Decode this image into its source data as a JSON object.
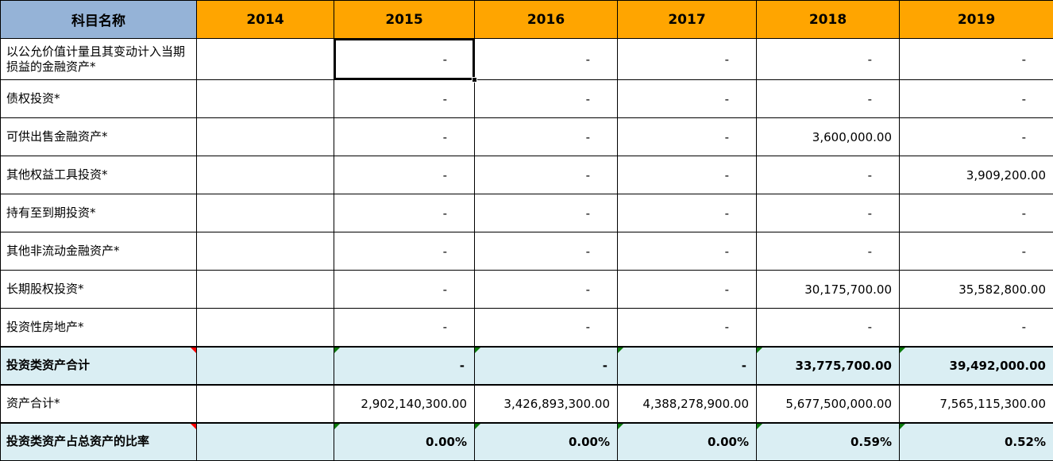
{
  "header": {
    "subject": "科目名称",
    "years": [
      "2014",
      "2015",
      "2016",
      "2017",
      "2018",
      "2019"
    ]
  },
  "selection": {
    "row": 0,
    "col": 1
  },
  "colors": {
    "subject_header_bg": "#95B3D7",
    "year_header_bg": "#FFA500",
    "summary_row_bg": "#DAEEF3",
    "grid": "#000000",
    "formula_indicator_green": "#0B7A0B",
    "comment_indicator_red": "#FF0000"
  },
  "rows": [
    {
      "label": "以公允价值计量且其变动计入当期损益的金融资产*",
      "values": [
        "",
        "-",
        "-",
        "-",
        "-",
        "-"
      ],
      "summary": false,
      "red_flag": false,
      "green_cols": []
    },
    {
      "label": "债权投资*",
      "values": [
        "",
        "-",
        "-",
        "-",
        "-",
        "-"
      ],
      "summary": false,
      "red_flag": false,
      "green_cols": []
    },
    {
      "label": "可供出售金融资产*",
      "values": [
        "",
        "-",
        "-",
        "-",
        "3,600,000.00",
        "-"
      ],
      "summary": false,
      "red_flag": false,
      "green_cols": []
    },
    {
      "label": "其他权益工具投资*",
      "values": [
        "",
        "-",
        "-",
        "-",
        "-",
        "3,909,200.00"
      ],
      "summary": false,
      "red_flag": false,
      "green_cols": []
    },
    {
      "label": "持有至到期投资*",
      "values": [
        "",
        "-",
        "-",
        "-",
        "-",
        "-"
      ],
      "summary": false,
      "red_flag": false,
      "green_cols": []
    },
    {
      "label": "其他非流动金融资产*",
      "values": [
        "",
        "-",
        "-",
        "-",
        "-",
        "-"
      ],
      "summary": false,
      "red_flag": false,
      "green_cols": []
    },
    {
      "label": "长期股权投资*",
      "values": [
        "",
        "-",
        "-",
        "-",
        "30,175,700.00",
        "35,582,800.00"
      ],
      "summary": false,
      "red_flag": false,
      "green_cols": []
    },
    {
      "label": "投资性房地产*",
      "values": [
        "",
        "-",
        "-",
        "-",
        "-",
        "-"
      ],
      "summary": false,
      "red_flag": false,
      "green_cols": []
    },
    {
      "label": "投资类资产合计",
      "values": [
        "",
        "-",
        "-",
        "-",
        "33,775,700.00",
        "39,492,000.00"
      ],
      "summary": true,
      "red_flag": true,
      "green_cols": [
        1,
        2,
        3,
        4,
        5
      ]
    },
    {
      "label": "资产合计*",
      "values": [
        "",
        "2,902,140,300.00",
        "3,426,893,300.00",
        "4,388,278,900.00",
        "5,677,500,000.00",
        "7,565,115,300.00"
      ],
      "summary": false,
      "red_flag": false,
      "green_cols": []
    },
    {
      "label": "投资类资产占总资产的比率",
      "values": [
        "",
        "0.00%",
        "0.00%",
        "0.00%",
        "0.59%",
        "0.52%"
      ],
      "summary": true,
      "red_flag": true,
      "green_cols": [
        1,
        2,
        3,
        4,
        5
      ]
    }
  ]
}
